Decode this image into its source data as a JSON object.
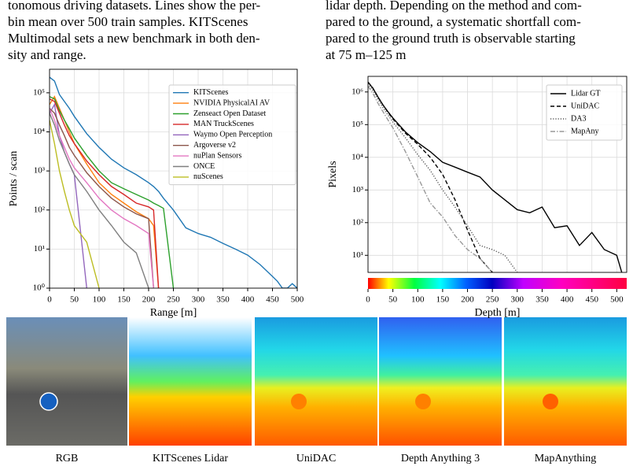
{
  "text": {
    "left": [
      "tonomous driving datasets. Lines show the per-",
      "bin mean over 500 train samples. KITScenes",
      "Multimodal sets a new benchmark in both den-",
      "sity and range."
    ],
    "right": [
      "lidar depth. Depending on the method and com-",
      "pared to the ground, a systematic shortfall com-",
      "pared to the ground truth is observable starting",
      "at 75 m–125 m"
    ]
  },
  "chart_data": [
    {
      "type": "line",
      "xlabel": "Range [m]",
      "ylabel": "Points / scan",
      "log_y": true,
      "grid": true,
      "legend": "upper right",
      "xlim": [
        0,
        500
      ],
      "xticks": [
        0,
        50,
        100,
        150,
        200,
        250,
        300,
        350,
        400,
        450,
        500
      ],
      "ylim": [
        1,
        400000
      ],
      "yticks": [
        {
          "value": 1,
          "label": "10⁰"
        },
        {
          "value": 10,
          "label": "10¹"
        },
        {
          "value": 100,
          "label": "10²"
        },
        {
          "value": 1000,
          "label": "10³"
        },
        {
          "value": 10000,
          "label": "10⁴"
        },
        {
          "value": 100000,
          "label": "10⁵"
        }
      ],
      "x": [
        0,
        10,
        20,
        30,
        40,
        50,
        75,
        100,
        125,
        150,
        175,
        200,
        210,
        220,
        230,
        250,
        275,
        300,
        325,
        350,
        375,
        400,
        425,
        450,
        460,
        470,
        480,
        490,
        500
      ],
      "series": [
        {
          "name": "KITScenes",
          "color": "#1f77b4",
          "dash": "solid",
          "values": [
            250000,
            200000,
            90000,
            60000,
            40000,
            25000,
            9000,
            4000,
            2000,
            1200,
            800,
            500,
            400,
            300,
            200,
            100,
            35,
            25,
            20,
            14,
            10,
            7,
            4,
            2,
            1.5,
            1,
            1,
            1.3,
            1
          ]
        },
        {
          "name": "NVIDIA PhysicalAI AV",
          "color": "#ff7f0e",
          "dash": "solid",
          "values": [
            50000,
            80000,
            40000,
            20000,
            10000,
            5000,
            1500,
            500,
            250,
            150,
            90,
            60,
            40,
            1,
            null,
            null,
            null,
            null,
            null,
            null,
            null,
            null,
            null,
            null,
            null,
            null,
            null,
            null,
            null
          ]
        },
        {
          "name": "Zenseact Open Dataset",
          "color": "#2ca02c",
          "dash": "solid",
          "values": [
            80000,
            70000,
            35000,
            20000,
            12000,
            7000,
            2500,
            1000,
            500,
            350,
            250,
            180,
            150,
            130,
            110,
            1,
            null,
            null,
            null,
            null,
            null,
            null,
            null,
            null,
            null,
            null,
            null,
            null,
            null
          ]
        },
        {
          "name": "MAN TruckScenes",
          "color": "#d62728",
          "dash": "solid",
          "values": [
            70000,
            60000,
            30000,
            15000,
            8000,
            5000,
            1800,
            800,
            400,
            250,
            150,
            120,
            100,
            1,
            null,
            null,
            null,
            null,
            null,
            null,
            null,
            null,
            null,
            null,
            null,
            null,
            null,
            null,
            null
          ]
        },
        {
          "name": "Waymo Open Perception",
          "color": "#9467bd",
          "dash": "solid",
          "values": [
            30000,
            50000,
            8000,
            3000,
            1500,
            800,
            1,
            null,
            null,
            null,
            null,
            null,
            null,
            null,
            null,
            null,
            null,
            null,
            null,
            null,
            null,
            null,
            null,
            null,
            null,
            null,
            null,
            null,
            null
          ]
        },
        {
          "name": "Argoverse v2",
          "color": "#8c564b",
          "dash": "solid",
          "values": [
            40000,
            30000,
            15000,
            8000,
            4000,
            2500,
            900,
            400,
            200,
            120,
            80,
            60,
            1,
            null,
            null,
            null,
            null,
            null,
            null,
            null,
            null,
            null,
            null,
            null,
            null,
            null,
            null,
            null,
            null
          ]
        },
        {
          "name": "nuPlan Sensors",
          "color": "#e377c2",
          "dash": "solid",
          "values": [
            40000,
            20000,
            8000,
            4000,
            2000,
            1200,
            500,
            200,
            100,
            60,
            40,
            25,
            1,
            null,
            null,
            null,
            null,
            null,
            null,
            null,
            null,
            null,
            null,
            null,
            null,
            null,
            null,
            null,
            null
          ]
        },
        {
          "name": "ONCE",
          "color": "#7f7f7f",
          "dash": "solid",
          "values": [
            30000,
            15000,
            6000,
            3000,
            1500,
            800,
            300,
            100,
            40,
            15,
            8,
            1,
            null,
            null,
            null,
            null,
            null,
            null,
            null,
            null,
            null,
            null,
            null,
            null,
            null,
            null,
            null,
            null,
            null
          ]
        },
        {
          "name": "nuScenes",
          "color": "#bcbd22",
          "dash": "solid",
          "values": [
            20000,
            5000,
            1000,
            300,
            100,
            40,
            15,
            1,
            null,
            null,
            null,
            null,
            null,
            null,
            null,
            null,
            null,
            null,
            null,
            null,
            null,
            null,
            null,
            null,
            null,
            null,
            null,
            null,
            null
          ]
        }
      ]
    },
    {
      "type": "line",
      "xlabel": "Depth [m]",
      "ylabel": "Pixels",
      "log_y": true,
      "grid": true,
      "legend": "upper right",
      "colorbar": true,
      "xlim": [
        0,
        520
      ],
      "xticks": [
        0,
        50,
        100,
        150,
        200,
        250,
        300,
        350,
        400,
        450,
        500
      ],
      "ylim": [
        3,
        3000000
      ],
      "yticks": [
        {
          "value": 10,
          "label": "10¹"
        },
        {
          "value": 100,
          "label": "10²"
        },
        {
          "value": 1000,
          "label": "10³"
        },
        {
          "value": 10000,
          "label": "10⁴"
        },
        {
          "value": 100000,
          "label": "10⁵"
        },
        {
          "value": 1000000,
          "label": "10⁶"
        }
      ],
      "x": [
        0,
        10,
        20,
        30,
        40,
        50,
        75,
        100,
        125,
        150,
        175,
        200,
        225,
        250,
        275,
        300,
        325,
        350,
        375,
        400,
        425,
        450,
        475,
        500,
        510
      ],
      "series": [
        {
          "name": "Lidar GT",
          "color": "#000000",
          "dash": "solid",
          "values": [
            2000000,
            1300000,
            700000,
            400000,
            250000,
            160000,
            60000,
            28000,
            15000,
            7000,
            5000,
            3500,
            2500,
            1000,
            500,
            250,
            200,
            300,
            70,
            80,
            20,
            50,
            15,
            10,
            3
          ]
        },
        {
          "name": "UniDAC",
          "color": "#000000",
          "dash": "dashed",
          "values": [
            2000000,
            1300000,
            700000,
            400000,
            240000,
            150000,
            55000,
            25000,
            10000,
            3000,
            500,
            60,
            8,
            3,
            null,
            null,
            null,
            null,
            null,
            null,
            null,
            null,
            null,
            null,
            null
          ]
        },
        {
          "name": "DA3",
          "color": "#555555",
          "dash": "dotted",
          "values": [
            1800000,
            1100000,
            600000,
            330000,
            200000,
            120000,
            40000,
            12000,
            4000,
            1000,
            300,
            80,
            20,
            15,
            10,
            3,
            null,
            null,
            null,
            null,
            null,
            null,
            null,
            null,
            null
          ]
        },
        {
          "name": "MapAny",
          "color": "#999999",
          "dash": "dashdot",
          "values": [
            1500000,
            900000,
            450000,
            250000,
            140000,
            80000,
            15000,
            2500,
            400,
            150,
            40,
            15,
            8,
            3,
            null,
            null,
            null,
            null,
            null,
            null,
            null,
            null,
            null,
            null,
            null
          ]
        }
      ]
    }
  ],
  "images": {
    "captions": [
      "RGB",
      "KITScenes Lidar",
      "UniDAC",
      "Depth Anything 3",
      "MapAnything"
    ]
  }
}
